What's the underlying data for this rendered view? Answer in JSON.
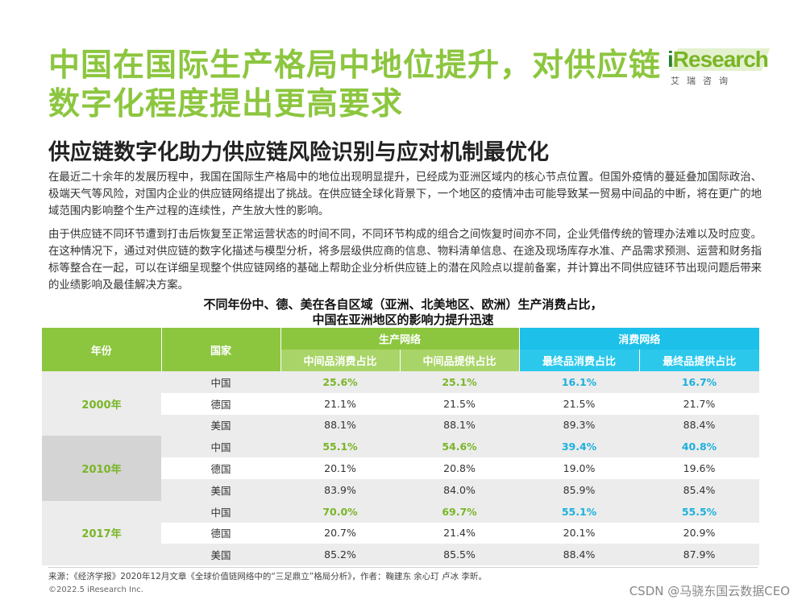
{
  "title": "中国在国际生产格局中地位提升，对供应链数字化程度提出更高要求",
  "logo": {
    "brand_i": "i",
    "brand_rest": "Research",
    "cn": "艾瑞咨询"
  },
  "subtitle": "供应链数字化助力供应链风险识别与应对机制最优化",
  "paragraphs": [
    "在最近二十余年的发展历程中，我国在国际生产格局中的地位出现明显提升，已经成为亚洲区域内的核心节点位置。但国外疫情的蔓延叠加国际政治、极端天气等风险，对国内企业的供应链网络提出了挑战。在供应链全球化背景下，一个地区的疫情冲击可能导致某一贸易中间品的中断，将在更广的地域范围内影响整个生产过程的连续性，产生放大性的影响。",
    "由于供应链不同环节遭到打击后恢复至正常运营状态的时间不同，不同环节构成的组合之间恢复时间亦不同，企业凭借传统的管理办法难以及时应变。在这种情况下，通过对供应链的数字化描述与模型分析，将多层级供应商的信息、物料清单信息、在途及现场库存水准、产品需求预测、运营和财务指标等整合在一起，可以在详细呈现整个供应链网络的基础上帮助企业分析供应链上的潜在风险点以提前备案，并计算出不同供应链环节出现问题后带来的业绩影响及最佳解决方案。"
  ],
  "table_title": {
    "line1": "不同年份中、德、美在各自区域（亚洲、北美地区、欧洲）生产消费占比，",
    "line2": "中国在亚洲地区的影响力提升迅速"
  },
  "table": {
    "header": {
      "year": "年份",
      "country": "国家",
      "production": "生产网络",
      "consumption": "消费网络",
      "cols": [
        "中间品消费占比",
        "中间品提供占比",
        "最终品消费占比",
        "最终品提供占比"
      ]
    },
    "groups": [
      {
        "year": "2000年",
        "rows": [
          {
            "country": "中国",
            "values": [
              "25.6%",
              "25.1%",
              "16.1%",
              "16.7%"
            ]
          },
          {
            "country": "德国",
            "values": [
              "21.1%",
              "21.5%",
              "21.5%",
              "21.7%"
            ]
          },
          {
            "country": "美国",
            "values": [
              "88.1%",
              "88.1%",
              "89.3%",
              "88.4%"
            ]
          }
        ]
      },
      {
        "year": "2010年",
        "rows": [
          {
            "country": "中国",
            "values": [
              "55.1%",
              "54.6%",
              "39.4%",
              "40.8%"
            ]
          },
          {
            "country": "德国",
            "values": [
              "20.1%",
              "20.8%",
              "19.0%",
              "19.6%"
            ]
          },
          {
            "country": "美国",
            "values": [
              "83.9%",
              "84.0%",
              "85.9%",
              "85.4%"
            ]
          }
        ]
      },
      {
        "year": "2017年",
        "rows": [
          {
            "country": "中国",
            "values": [
              "70.0%",
              "69.7%",
              "55.1%",
              "55.5%"
            ]
          },
          {
            "country": "德国",
            "values": [
              "20.7%",
              "21.4%",
              "20.1%",
              "20.9%"
            ]
          },
          {
            "country": "美国",
            "values": [
              "85.2%",
              "85.5%",
              "88.4%",
              "87.9%"
            ]
          }
        ]
      }
    ]
  },
  "source": "来源：《经济学报》2020年12月文章《全球价值链网络中的“三足鼎立”格局分析》，作者：鞠建东 余心玎 卢冰 李昕。",
  "copyright": "©2022.5 iResearch Inc.",
  "watermark": "CSDN @马骁东国云数据CEO",
  "colors": {
    "green": "#8cc63f",
    "blue": "#1cc0e8"
  }
}
